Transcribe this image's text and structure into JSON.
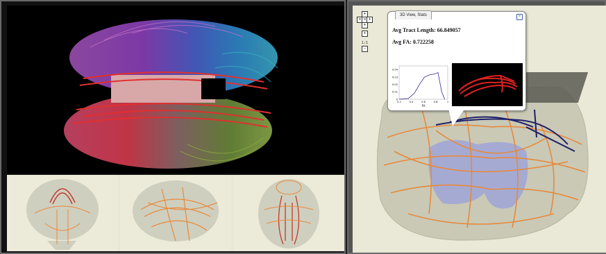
{
  "popup": {
    "tab_label": "3D View, Stats",
    "close_glyph": "×",
    "avg_length_label": "Avg Tract Length: 66.849057",
    "avg_fa_label": "Avg FA: 0.722258",
    "histogram": {
      "y_ticks": [
        "0.04",
        "0.03",
        "0.02",
        "0.01",
        "0"
      ],
      "x_ticks": [
        "0.2",
        "0.4",
        "0.6",
        "0.8",
        "1"
      ],
      "x_label": "FA",
      "values": [
        {
          "fa": 0.2,
          "p": 0.0
        },
        {
          "fa": 0.35,
          "p": 0.001
        },
        {
          "fa": 0.45,
          "p": 0.008
        },
        {
          "fa": 0.55,
          "p": 0.022
        },
        {
          "fa": 0.62,
          "p": 0.03
        },
        {
          "fa": 0.7,
          "p": 0.033
        },
        {
          "fa": 0.78,
          "p": 0.034
        },
        {
          "fa": 0.84,
          "p": 0.036
        },
        {
          "fa": 0.9,
          "p": 0.01
        },
        {
          "fa": 0.95,
          "p": 0.0
        }
      ],
      "x_range": [
        0.2,
        1.0
      ],
      "y_range": [
        0,
        0.045
      ],
      "line_color": "#4a3fa0"
    }
  },
  "nav": {
    "up": "+",
    "down": "+",
    "left": "+",
    "right": "+",
    "center": "o",
    "zoom_in": "+",
    "zoom_out": "−",
    "zoom_value": "1:1"
  },
  "colors": {
    "fiber_orange": "#e8893a",
    "fiber_navy": "#1f1f6b",
    "brain_fill": "#c9c9b6",
    "ventricle": "#9fa4d8"
  }
}
